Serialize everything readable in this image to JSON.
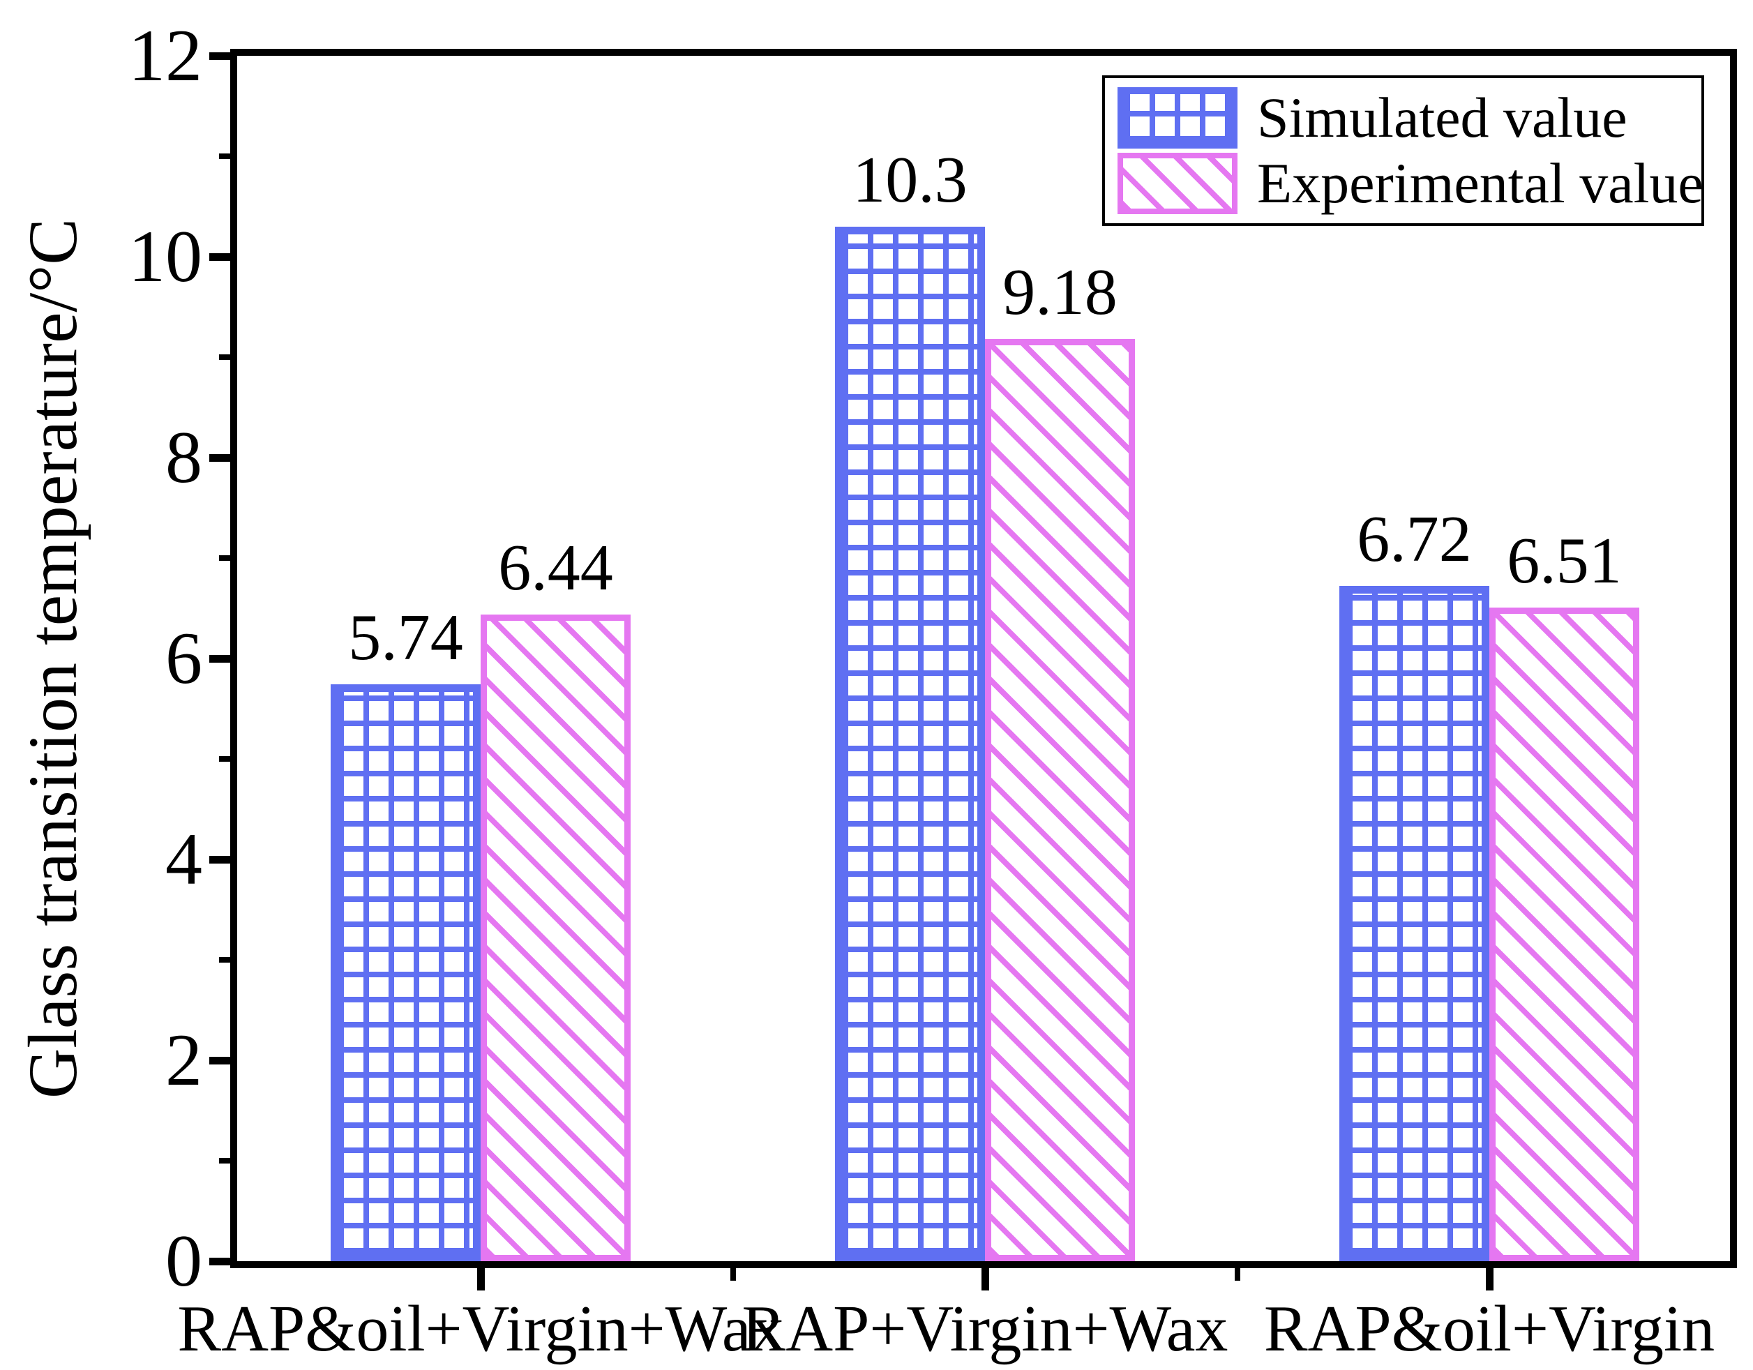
{
  "chart_data": {
    "type": "bar",
    "title": "",
    "ylabel": "Glass transition temperature/°C",
    "xlabel": "",
    "ylim": [
      0,
      12
    ],
    "ytick_values": [
      0,
      2,
      4,
      6,
      8,
      10,
      12
    ],
    "ytick_labels": [
      "0",
      "2",
      "4",
      "6",
      "8",
      "10",
      "12"
    ],
    "yminor_values": [
      1,
      3,
      5,
      7,
      9,
      11
    ],
    "grid": false,
    "categories": [
      "RAP&oil+Virgin+Wax",
      "RAP+Virgin+Wax",
      "RAP&oil+Virgin"
    ],
    "series": [
      {
        "name": "Simulated value",
        "values": [
          5.74,
          10.3,
          6.72
        ],
        "value_labels": [
          "5.74",
          "10.3",
          "6.72"
        ],
        "color": "#5f6ff2",
        "hatch": "grid"
      },
      {
        "name": "Experimental value",
        "values": [
          6.44,
          9.18,
          6.51
        ],
        "value_labels": [
          "6.44",
          "9.18",
          "6.51"
        ],
        "color": "#e577f1",
        "hatch": "diagonal-down"
      }
    ],
    "legend": {
      "position": "top-right",
      "entries": [
        "Simulated value",
        "Experimental value"
      ]
    },
    "axis_color": "#000000",
    "text_color": "#000000",
    "background_color": "#ffffff"
  }
}
